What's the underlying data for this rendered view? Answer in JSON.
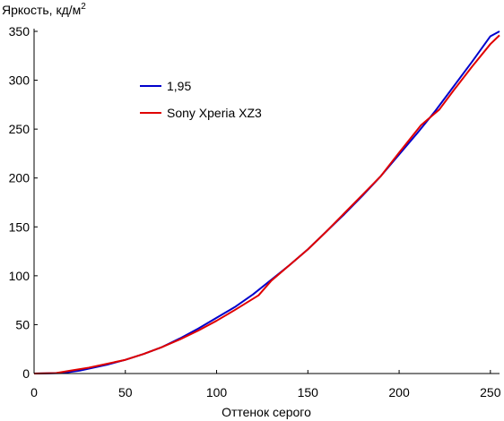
{
  "chart_data": {
    "type": "line",
    "title": "",
    "ylabel": "Яркость, кд/м",
    "ylabel_superscript": "2",
    "xlabel": "Оттенок серого",
    "xlim": [
      0,
      255
    ],
    "ylim": [
      0,
      350
    ],
    "xticks": [
      0,
      50,
      100,
      150,
      200,
      250
    ],
    "yticks": [
      0,
      50,
      100,
      150,
      200,
      250,
      300,
      350
    ],
    "grid": false,
    "legend_position": "upper-left",
    "series": [
      {
        "name": "1,95",
        "color": "#0000cc",
        "x": [
          0,
          15,
          25,
          40,
          50,
          60,
          70,
          80,
          90,
          100,
          110,
          120,
          130,
          140,
          150,
          160,
          170,
          180,
          190,
          200,
          210,
          220,
          230,
          240,
          250,
          255
        ],
        "y": [
          0,
          0.5,
          3,
          9,
          14,
          20,
          27,
          36,
          46,
          57,
          68,
          81,
          96,
          111,
          127,
          145,
          163,
          182,
          202,
          224,
          246,
          269,
          294,
          319,
          345,
          350
        ]
      },
      {
        "name": "Sony Xperia XZ3",
        "color": "#e00000",
        "x": [
          0,
          12,
          20,
          30,
          40,
          50,
          60,
          70,
          80,
          90,
          100,
          110,
          123,
          130,
          140,
          150,
          160,
          170,
          180,
          190,
          200,
          212,
          222,
          230,
          240,
          250,
          255
        ],
        "y": [
          0,
          0.5,
          3,
          6,
          10,
          14,
          20,
          27,
          35,
          44,
          54,
          65,
          80,
          95,
          111,
          127,
          145,
          164,
          183,
          202,
          226,
          254,
          270,
          290,
          314,
          337,
          346
        ]
      }
    ]
  }
}
